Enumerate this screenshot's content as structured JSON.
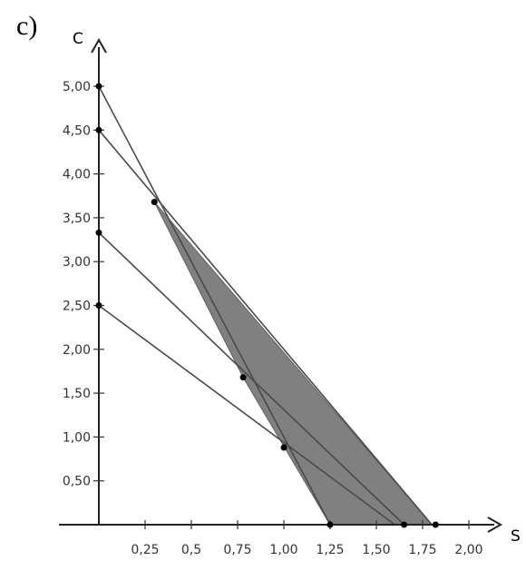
{
  "figure_label": "c)",
  "chart_data": {
    "type": "line",
    "xlabel": "S",
    "ylabel": "C",
    "xlim": [
      0,
      2.2
    ],
    "ylim": [
      0,
      5.5
    ],
    "x_ticks": [
      {
        "value": 0.25,
        "label": "0,25"
      },
      {
        "value": 0.5,
        "label": "0,5"
      },
      {
        "value": 0.75,
        "label": "0,75"
      },
      {
        "value": 1.0,
        "label": "1,00"
      },
      {
        "value": 1.25,
        "label": "1,25"
      },
      {
        "value": 1.5,
        "label": "1,50"
      },
      {
        "value": 1.75,
        "label": "1,75"
      },
      {
        "value": 2.0,
        "label": "2,00"
      }
    ],
    "y_ticks": [
      {
        "value": 0.5,
        "label": "0,50"
      },
      {
        "value": 1.0,
        "label": "1,00"
      },
      {
        "value": 1.5,
        "label": "1,50"
      },
      {
        "value": 2.0,
        "label": "2,00"
      },
      {
        "value": 2.5,
        "label": "2,50"
      },
      {
        "value": 3.0,
        "label": "3,00"
      },
      {
        "value": 3.5,
        "label": "3,50"
      },
      {
        "value": 4.0,
        "label": "4,00"
      },
      {
        "value": 4.5,
        "label": "4,50"
      },
      {
        "value": 5.0,
        "label": "5,00"
      }
    ],
    "series": [
      {
        "points": [
          [
            0,
            5.0
          ],
          [
            1.25,
            0
          ]
        ]
      },
      {
        "points": [
          [
            0,
            4.5
          ],
          [
            1.8,
            0
          ]
        ]
      },
      {
        "points": [
          [
            0,
            3.33
          ],
          [
            1.65,
            0
          ]
        ]
      },
      {
        "points": [
          [
            0,
            2.5
          ],
          [
            1.6,
            0
          ]
        ]
      }
    ],
    "points": [
      [
        0,
        5.0
      ],
      [
        0,
        4.5
      ],
      [
        0,
        3.33
      ],
      [
        0,
        2.5
      ],
      [
        0.3,
        3.68
      ],
      [
        0.78,
        1.68
      ],
      [
        1.0,
        0.88
      ],
      [
        1.25,
        0
      ],
      [
        1.65,
        0
      ],
      [
        1.82,
        0
      ]
    ],
    "shaded_region": [
      [
        0.3,
        3.68
      ],
      [
        1.8,
        0
      ],
      [
        1.25,
        0
      ],
      [
        0.78,
        1.68
      ]
    ],
    "grid": false
  }
}
